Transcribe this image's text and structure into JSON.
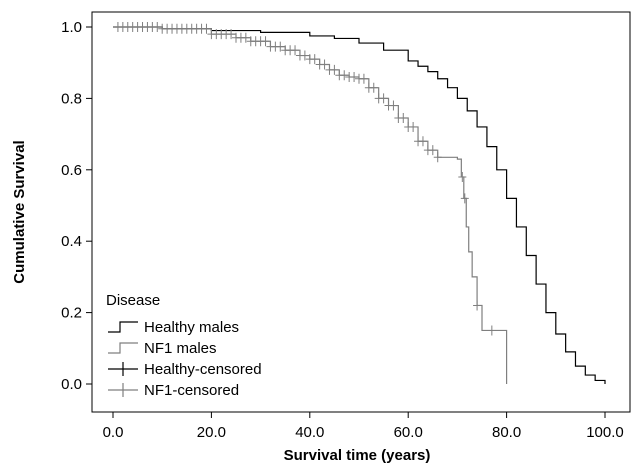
{
  "chart_data": {
    "type": "line",
    "subtype": "kaplan-meier step",
    "title": "",
    "xlabel": "Survival time (years)",
    "ylabel": "Cumulative Survival",
    "xlim": [
      0,
      100
    ],
    "ylim": [
      0,
      1.0
    ],
    "x_ticks": [
      "0.0",
      "20.0",
      "40.0",
      "60.0",
      "80.0",
      "100.0"
    ],
    "y_ticks": [
      "0.0",
      "0.2",
      "0.4",
      "0.6",
      "0.8",
      "1.0"
    ],
    "grid": false,
    "legend": {
      "title": "Disease",
      "placement": "bottom-left",
      "entries": [
        "Healthy males",
        "NF1 males",
        "Healthy-censored",
        "NF1-censored"
      ]
    },
    "series": [
      {
        "name": "Healthy males",
        "color": "#000000",
        "points": [
          [
            0,
            1.0
          ],
          [
            10,
            0.995
          ],
          [
            20,
            0.99
          ],
          [
            30,
            0.985
          ],
          [
            40,
            0.975
          ],
          [
            45,
            0.968
          ],
          [
            50,
            0.955
          ],
          [
            55,
            0.935
          ],
          [
            60,
            0.905
          ],
          [
            62,
            0.89
          ],
          [
            64,
            0.875
          ],
          [
            66,
            0.855
          ],
          [
            68,
            0.83
          ],
          [
            70,
            0.8
          ],
          [
            72,
            0.765
          ],
          [
            74,
            0.72
          ],
          [
            76,
            0.665
          ],
          [
            78,
            0.6
          ],
          [
            80,
            0.52
          ],
          [
            82,
            0.44
          ],
          [
            84,
            0.36
          ],
          [
            86,
            0.28
          ],
          [
            88,
            0.2
          ],
          [
            90,
            0.14
          ],
          [
            92,
            0.09
          ],
          [
            94,
            0.05
          ],
          [
            96,
            0.025
          ],
          [
            98,
            0.01
          ],
          [
            100,
            0.0
          ]
        ],
        "censored_x": []
      },
      {
        "name": "NF1 males",
        "color": "#7f7f7f",
        "points": [
          [
            0,
            1.0
          ],
          [
            10,
            0.995
          ],
          [
            20,
            0.98
          ],
          [
            25,
            0.97
          ],
          [
            28,
            0.96
          ],
          [
            32,
            0.945
          ],
          [
            35,
            0.935
          ],
          [
            38,
            0.92
          ],
          [
            40,
            0.91
          ],
          [
            42,
            0.895
          ],
          [
            44,
            0.88
          ],
          [
            46,
            0.865
          ],
          [
            48,
            0.86
          ],
          [
            50,
            0.855
          ],
          [
            52,
            0.83
          ],
          [
            54,
            0.8
          ],
          [
            56,
            0.78
          ],
          [
            58,
            0.745
          ],
          [
            60,
            0.72
          ],
          [
            62,
            0.68
          ],
          [
            64,
            0.655
          ],
          [
            66,
            0.635
          ],
          [
            70,
            0.63
          ],
          [
            70.8,
            0.58
          ],
          [
            71.3,
            0.52
          ],
          [
            71.8,
            0.44
          ],
          [
            72.3,
            0.37
          ],
          [
            73,
            0.3
          ],
          [
            74,
            0.22
          ],
          [
            75,
            0.15
          ],
          [
            80,
            0.15
          ],
          [
            80,
            0.0
          ]
        ],
        "censored_x": [
          1,
          2,
          3,
          4,
          5,
          6,
          7,
          8,
          9,
          10,
          11,
          12,
          13,
          14,
          15,
          16,
          17,
          18,
          19,
          20,
          21,
          22,
          23,
          24,
          25,
          26,
          27,
          28,
          29,
          30,
          31,
          32,
          33,
          34,
          35,
          36,
          37,
          38,
          39,
          40,
          41,
          42,
          43,
          44,
          45,
          46,
          47,
          48,
          49,
          50,
          51,
          52,
          53,
          54,
          55,
          56,
          57,
          58,
          59,
          60,
          61,
          62,
          63,
          64,
          65,
          66,
          71,
          71.5,
          74,
          77
        ]
      }
    ]
  }
}
